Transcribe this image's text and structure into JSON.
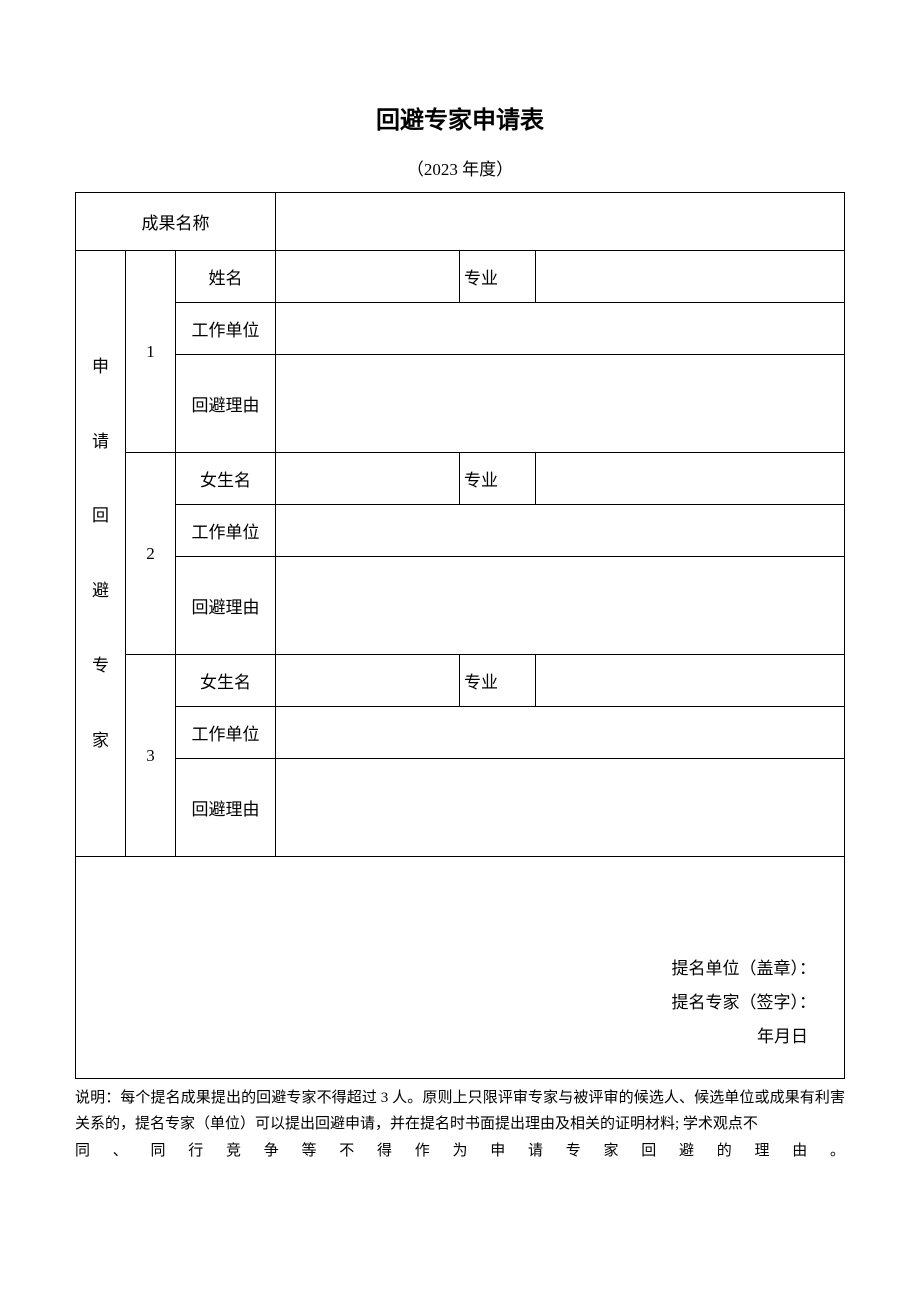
{
  "title": "回避专家申请表",
  "subtitle": "（2023 年度）",
  "labels": {
    "achievement": "成果名称",
    "section": "申请回避专家",
    "name1": "姓名",
    "name2": "女生名",
    "name3": "女生名",
    "major": "专业",
    "work_unit": "工作单位",
    "recusal_reason": "回避理由"
  },
  "numbers": {
    "one": "1",
    "two": "2",
    "three": "3"
  },
  "values": {
    "achievement": "",
    "expert1_name": "",
    "expert1_major": "",
    "expert1_unit": "",
    "expert1_reason": "",
    "expert2_name": "",
    "expert2_major": "",
    "expert2_unit": "",
    "expert2_reason": "",
    "expert3_name": "",
    "expert3_major": "",
    "expert3_unit": "",
    "expert3_reason": ""
  },
  "signature": {
    "unit_seal": "提名单位（盖章）：",
    "expert_sign": "提名专家（签字）：",
    "date": "年月日"
  },
  "footnote": {
    "line1": "说明：每个提名成果提出的回避专家不得超过 3 人。原则上只限评审专家与被评审的候选人、候选单位或成果有利害关系的，提名专家（单位）可以提出回避申请，并在提名时书面提出理由及相关的证明材料;  学术观点不",
    "line2": "同、同行竞争等不得作为申请专家回避的理由。"
  },
  "colors": {
    "background": "#ffffff",
    "text": "#000000",
    "border": "#000000"
  }
}
